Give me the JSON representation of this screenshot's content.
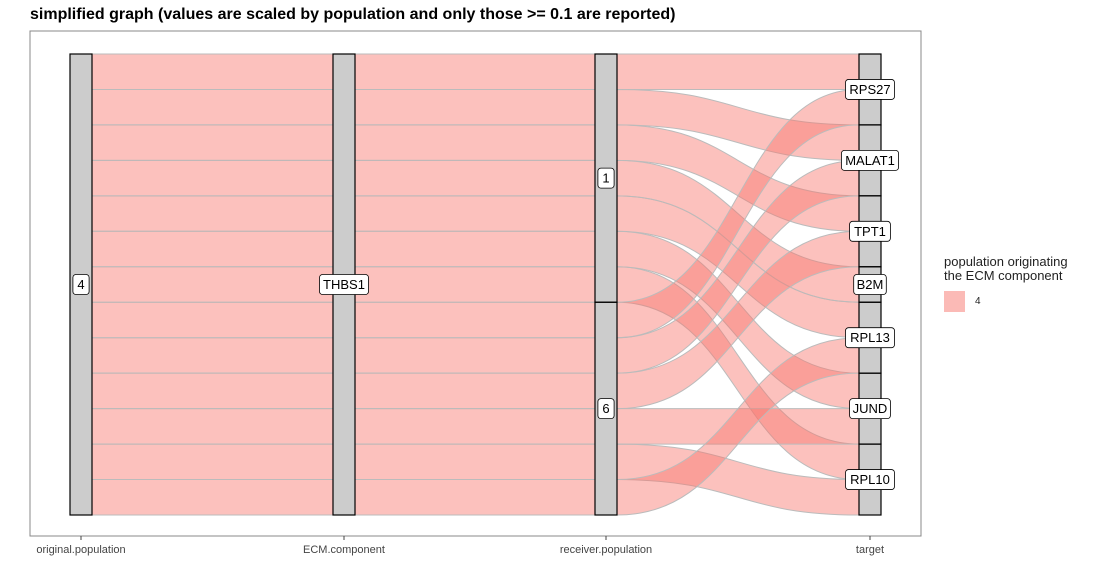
{
  "title": "simplified graph (values are scaled by population and only those >= 0.1 are reported)",
  "chart_data": {
    "type": "alluvial",
    "axes": [
      "original.population",
      "ECM.component",
      "receiver.population",
      "target"
    ],
    "axis_strata": {
      "original.population": [
        "4"
      ],
      "ECM.component": [
        "THBS1"
      ],
      "receiver.population": [
        "1",
        "6"
      ],
      "target": [
        "RPS27",
        "MALAT1",
        "TPT1",
        "B2M",
        "RPL13",
        "JUND",
        "RPL10"
      ]
    },
    "flows": [
      {
        "original_population": "4",
        "ecm_component": "THBS1",
        "receiver_population": "1",
        "target": "RPS27",
        "value": 1
      },
      {
        "original_population": "4",
        "ecm_component": "THBS1",
        "receiver_population": "1",
        "target": "MALAT1",
        "value": 1
      },
      {
        "original_population": "4",
        "ecm_component": "THBS1",
        "receiver_population": "1",
        "target": "TPT1",
        "value": 1
      },
      {
        "original_population": "4",
        "ecm_component": "THBS1",
        "receiver_population": "1",
        "target": "B2M",
        "value": 1
      },
      {
        "original_population": "4",
        "ecm_component": "THBS1",
        "receiver_population": "1",
        "target": "RPL13",
        "value": 1
      },
      {
        "original_population": "4",
        "ecm_component": "THBS1",
        "receiver_population": "1",
        "target": "JUND",
        "value": 1
      },
      {
        "original_population": "4",
        "ecm_component": "THBS1",
        "receiver_population": "1",
        "target": "RPL10",
        "value": 1
      },
      {
        "original_population": "4",
        "ecm_component": "THBS1",
        "receiver_population": "6",
        "target": "RPS27",
        "value": 1
      },
      {
        "original_population": "4",
        "ecm_component": "THBS1",
        "receiver_population": "6",
        "target": "MALAT1",
        "value": 1
      },
      {
        "original_population": "4",
        "ecm_component": "THBS1",
        "receiver_population": "6",
        "target": "TPT1",
        "value": 1
      },
      {
        "original_population": "4",
        "ecm_component": "THBS1",
        "receiver_population": "6",
        "target": "JUND",
        "value": 1
      },
      {
        "original_population": "4",
        "ecm_component": "THBS1",
        "receiver_population": "6",
        "target": "RPL10",
        "value": 1
      },
      {
        "original_population": "4",
        "ecm_component": "THBS1",
        "receiver_population": "6",
        "target": "RPL13",
        "value": 1
      }
    ],
    "legend": {
      "title": "population originating\nthe ECM component",
      "entries": [
        {
          "label": "4",
          "color": "#F8766D"
        }
      ],
      "position": "right"
    },
    "colors": {
      "flow_fill": "#F8766D",
      "stratum_fill": "#cccccc",
      "stratum_border": "#000000",
      "panel_border": "#888888"
    },
    "grid": false
  }
}
